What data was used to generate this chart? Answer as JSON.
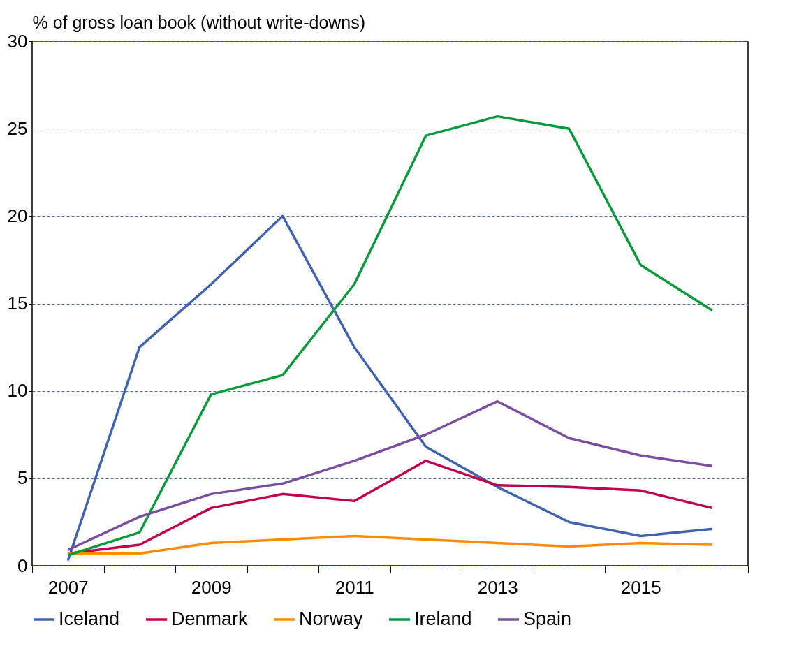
{
  "chart_data": {
    "type": "line",
    "ylabel": "% of gross loan book (without write-downs)",
    "categories": [
      "2007",
      null,
      "2009",
      null,
      "2011",
      null,
      "2013",
      null,
      "2015",
      null
    ],
    "series": [
      {
        "name": "Iceland",
        "color": "#4063b0",
        "values": [
          0.3,
          12.5,
          16.1,
          20.0,
          12.5,
          6.8,
          4.5,
          2.5,
          1.7,
          2.1
        ]
      },
      {
        "name": "Denmark",
        "color": "#c0004e",
        "values": [
          0.7,
          1.2,
          3.3,
          4.1,
          3.7,
          6.0,
          4.6,
          4.5,
          4.3,
          3.3
        ]
      },
      {
        "name": "Norway",
        "color": "#ff8c00",
        "values": [
          0.7,
          0.7,
          1.3,
          1.5,
          1.7,
          1.5,
          1.3,
          1.1,
          1.3,
          1.2
        ]
      },
      {
        "name": "Ireland",
        "color": "#0a9a3c",
        "values": [
          0.6,
          1.9,
          9.8,
          10.9,
          16.1,
          24.6,
          25.7,
          25.0,
          17.2,
          14.6
        ]
      },
      {
        "name": "Spain",
        "color": "#7b4fa0",
        "values": [
          0.9,
          2.8,
          4.1,
          4.7,
          6.0,
          7.5,
          9.4,
          7.3,
          6.3,
          5.7
        ]
      }
    ],
    "ylim": [
      0,
      30
    ],
    "yticks": [
      0,
      5,
      10,
      15,
      20,
      25,
      30
    ],
    "grid": "y",
    "legend": "bottom",
    "marker": "none",
    "line_style": "solid"
  }
}
